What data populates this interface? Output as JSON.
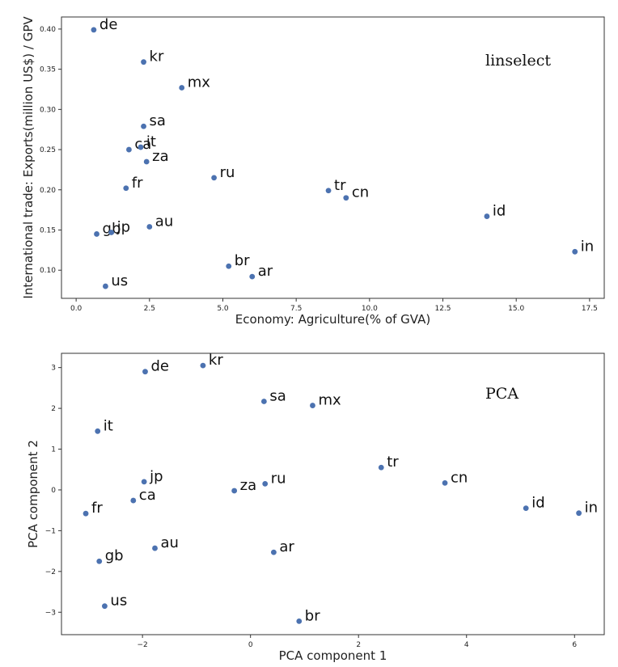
{
  "chart_data": [
    {
      "type": "scatter",
      "title": "linselect",
      "xlabel": "Economy: Agriculture(% of GVA)",
      "ylabel": "International trade: Exports(million US$) / GPV",
      "xlim": [
        -0.5,
        18.0
      ],
      "ylim": [
        0.065,
        0.415
      ],
      "xticks": [
        0.0,
        2.5,
        5.0,
        7.5,
        10.0,
        12.5,
        15.0,
        17.5
      ],
      "xtick_labels": [
        "0.0",
        "2.5",
        "5.0",
        "7.5",
        "10.0",
        "12.5",
        "15.0",
        "17.5"
      ],
      "yticks": [
        0.1,
        0.15,
        0.2,
        0.25,
        0.3,
        0.35,
        0.4
      ],
      "ytick_labels": [
        "0.10",
        "0.15",
        "0.20",
        "0.25",
        "0.30",
        "0.35",
        "0.40"
      ],
      "grid": false,
      "color": "#4c72b0",
      "points": [
        {
          "label": "de",
          "x": 0.6,
          "y": 0.399
        },
        {
          "label": "kr",
          "x": 2.3,
          "y": 0.359
        },
        {
          "label": "mx",
          "x": 3.6,
          "y": 0.327
        },
        {
          "label": "sa",
          "x": 2.3,
          "y": 0.279
        },
        {
          "label": "ca",
          "x": 1.8,
          "y": 0.25
        },
        {
          "label": "it",
          "x": 2.2,
          "y": 0.253
        },
        {
          "label": "za",
          "x": 2.4,
          "y": 0.235
        },
        {
          "label": "ru",
          "x": 4.7,
          "y": 0.215
        },
        {
          "label": "fr",
          "x": 1.7,
          "y": 0.202
        },
        {
          "label": "tr",
          "x": 8.6,
          "y": 0.199
        },
        {
          "label": "cn",
          "x": 9.2,
          "y": 0.19
        },
        {
          "label": "id",
          "x": 14.0,
          "y": 0.167
        },
        {
          "label": "gb",
          "x": 0.7,
          "y": 0.145
        },
        {
          "label": "jp",
          "x": 1.2,
          "y": 0.147
        },
        {
          "label": "au",
          "x": 2.5,
          "y": 0.154
        },
        {
          "label": "in",
          "x": 17.0,
          "y": 0.123
        },
        {
          "label": "br",
          "x": 5.2,
          "y": 0.105
        },
        {
          "label": "ar",
          "x": 6.0,
          "y": 0.092
        },
        {
          "label": "us",
          "x": 1.0,
          "y": 0.08
        }
      ]
    },
    {
      "type": "scatter",
      "title": "PCA",
      "xlabel": "PCA component 1",
      "ylabel": "PCA component 2",
      "xlim": [
        -3.5,
        6.55
      ],
      "ylim": [
        -3.55,
        3.35
      ],
      "xticks": [
        -2,
        0,
        2,
        4,
        6
      ],
      "xtick_labels": [
        "−2",
        "0",
        "2",
        "4",
        "6"
      ],
      "yticks": [
        -3,
        -2,
        -1,
        0,
        1,
        2,
        3
      ],
      "ytick_labels": [
        "−3",
        "−2",
        "−1",
        "0",
        "1",
        "2",
        "3"
      ],
      "grid": false,
      "color": "#4c72b0",
      "points": [
        {
          "label": "de",
          "x": -1.95,
          "y": 2.9
        },
        {
          "label": "kr",
          "x": -0.88,
          "y": 3.05
        },
        {
          "label": "sa",
          "x": 0.25,
          "y": 2.17
        },
        {
          "label": "mx",
          "x": 1.15,
          "y": 2.07
        },
        {
          "label": "it",
          "x": -2.83,
          "y": 1.44
        },
        {
          "label": "tr",
          "x": 2.42,
          "y": 0.55
        },
        {
          "label": "cn",
          "x": 3.6,
          "y": 0.17
        },
        {
          "label": "jp",
          "x": -1.97,
          "y": 0.2
        },
        {
          "label": "ru",
          "x": 0.27,
          "y": 0.15
        },
        {
          "label": "za",
          "x": -0.3,
          "y": -0.02
        },
        {
          "label": "ca",
          "x": -2.17,
          "y": -0.26
        },
        {
          "label": "fr",
          "x": -3.05,
          "y": -0.58
        },
        {
          "label": "id",
          "x": 5.1,
          "y": -0.45
        },
        {
          "label": "in",
          "x": 6.08,
          "y": -0.57
        },
        {
          "label": "au",
          "x": -1.77,
          "y": -1.43
        },
        {
          "label": "ar",
          "x": 0.43,
          "y": -1.53
        },
        {
          "label": "gb",
          "x": -2.8,
          "y": -1.75
        },
        {
          "label": "us",
          "x": -2.7,
          "y": -2.85
        },
        {
          "label": "br",
          "x": 0.9,
          "y": -3.22
        }
      ]
    }
  ]
}
